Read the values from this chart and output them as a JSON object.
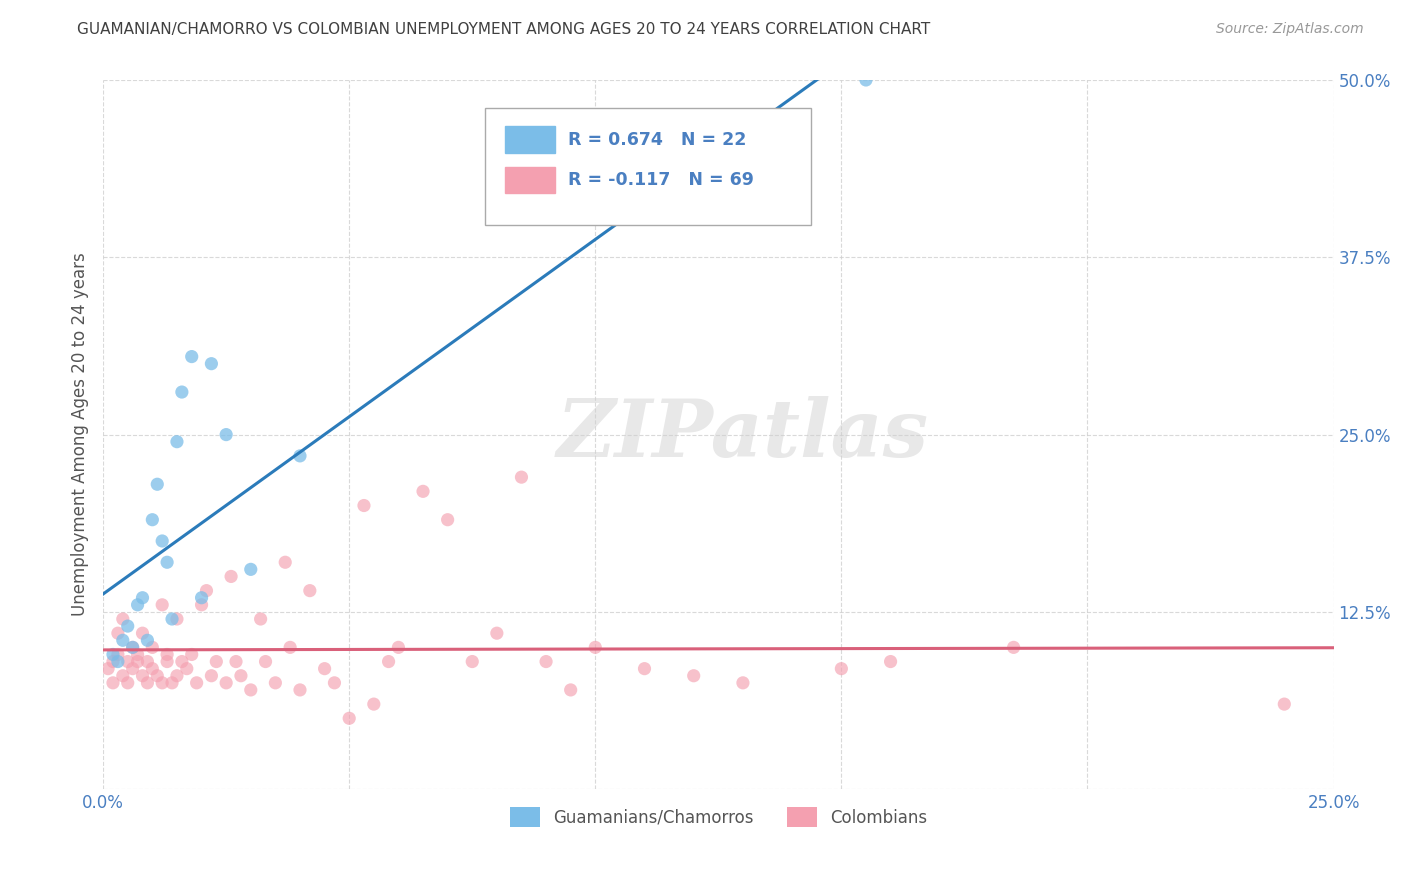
{
  "title": "GUAMANIAN/CHAMORRO VS COLOMBIAN UNEMPLOYMENT AMONG AGES 20 TO 24 YEARS CORRELATION CHART",
  "source": "Source: ZipAtlas.com",
  "ylabel": "Unemployment Among Ages 20 to 24 years",
  "xlim": [
    0.0,
    0.25
  ],
  "ylim": [
    0.0,
    0.5
  ],
  "xticks": [
    0.0,
    0.05,
    0.1,
    0.15,
    0.2,
    0.25
  ],
  "xticklabels": [
    "0.0%",
    "",
    "",
    "",
    "",
    "25.0%"
  ],
  "yticks": [
    0.0,
    0.125,
    0.25,
    0.375,
    0.5
  ],
  "yticklabels": [
    "",
    "12.5%",
    "25.0%",
    "37.5%",
    "50.0%"
  ],
  "guamanian_R": 0.674,
  "guamanian_N": 22,
  "colombian_R": -0.117,
  "colombian_N": 69,
  "guamanian_color": "#7bbde8",
  "colombian_color": "#f4a0b0",
  "guamanian_line_color": "#2b7bba",
  "colombian_line_color": "#d9607a",
  "legend_label_guamanian": "Guamanians/Chamorros",
  "legend_label_colombian": "Colombians",
  "background_color": "#ffffff",
  "grid_color": "#d0d0d0",
  "title_color": "#404040",
  "axis_label_color": "#555555",
  "tick_label_color": "#4a7fc1",
  "watermark": "ZIPatlas",
  "guamanian_x": [
    0.002,
    0.003,
    0.004,
    0.005,
    0.006,
    0.007,
    0.008,
    0.009,
    0.01,
    0.011,
    0.012,
    0.013,
    0.014,
    0.015,
    0.016,
    0.018,
    0.02,
    0.022,
    0.025,
    0.03,
    0.04,
    0.155
  ],
  "guamanian_y": [
    0.095,
    0.09,
    0.105,
    0.115,
    0.1,
    0.13,
    0.135,
    0.105,
    0.19,
    0.215,
    0.175,
    0.16,
    0.12,
    0.245,
    0.28,
    0.305,
    0.135,
    0.3,
    0.25,
    0.155,
    0.235,
    0.5
  ],
  "colombian_x": [
    0.001,
    0.002,
    0.002,
    0.003,
    0.003,
    0.004,
    0.004,
    0.005,
    0.005,
    0.006,
    0.006,
    0.007,
    0.007,
    0.008,
    0.008,
    0.009,
    0.009,
    0.01,
    0.01,
    0.011,
    0.012,
    0.012,
    0.013,
    0.013,
    0.014,
    0.015,
    0.015,
    0.016,
    0.017,
    0.018,
    0.019,
    0.02,
    0.021,
    0.022,
    0.023,
    0.025,
    0.026,
    0.027,
    0.028,
    0.03,
    0.032,
    0.033,
    0.035,
    0.037,
    0.038,
    0.04,
    0.042,
    0.045,
    0.047,
    0.05,
    0.053,
    0.055,
    0.058,
    0.06,
    0.065,
    0.07,
    0.075,
    0.08,
    0.085,
    0.09,
    0.095,
    0.1,
    0.11,
    0.12,
    0.13,
    0.15,
    0.16,
    0.185,
    0.24
  ],
  "colombian_y": [
    0.085,
    0.09,
    0.075,
    0.095,
    0.11,
    0.08,
    0.12,
    0.075,
    0.09,
    0.085,
    0.1,
    0.09,
    0.095,
    0.08,
    0.11,
    0.075,
    0.09,
    0.085,
    0.1,
    0.08,
    0.075,
    0.13,
    0.09,
    0.095,
    0.075,
    0.08,
    0.12,
    0.09,
    0.085,
    0.095,
    0.075,
    0.13,
    0.14,
    0.08,
    0.09,
    0.075,
    0.15,
    0.09,
    0.08,
    0.07,
    0.12,
    0.09,
    0.075,
    0.16,
    0.1,
    0.07,
    0.14,
    0.085,
    0.075,
    0.05,
    0.2,
    0.06,
    0.09,
    0.1,
    0.21,
    0.19,
    0.09,
    0.11,
    0.22,
    0.09,
    0.07,
    0.1,
    0.085,
    0.08,
    0.075,
    0.085,
    0.09,
    0.1,
    0.06
  ]
}
